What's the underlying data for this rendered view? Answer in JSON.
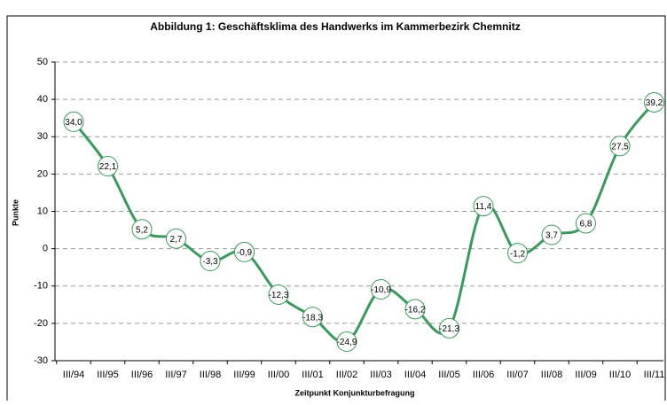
{
  "chart_data": {
    "type": "line",
    "title": "Abbildung 1: Geschäftsklima des Handwerks im Kammerbezirk Chemnitz",
    "y_label": "Punkte",
    "x_label": "Zeitpunkt Konjunkturbefragung",
    "categories": [
      "III/94",
      "III/95",
      "III/96",
      "III/97",
      "III/98",
      "III/99",
      "III/00",
      "III/01",
      "III/02",
      "III/03",
      "III/04",
      "III/05",
      "III/06",
      "III/07",
      "III/08",
      "III/09",
      "III/10",
      "III/11"
    ],
    "series": [
      {
        "name": "Geschäftsklima",
        "color": "#3a9a5c",
        "values": [
          34.0,
          22.1,
          5.2,
          2.7,
          -3.3,
          -0.9,
          -12.3,
          -18.3,
          -24.9,
          -10.9,
          -16.2,
          -21.3,
          11.4,
          -1.2,
          3.7,
          6.8,
          27.5,
          39.2
        ],
        "value_labels": [
          "34,0",
          "22,1",
          "5,2",
          "2,7",
          "-3,3",
          "-0,9",
          "-12,3",
          "-18,3",
          "-24,9",
          "-10,9",
          "-16,2",
          "-21,3",
          "11,4",
          "-1,2",
          "3,7",
          "6,8",
          "27,5",
          "39,2"
        ]
      }
    ],
    "ylim": [
      -30,
      50
    ],
    "yticks": [
      -30,
      -20,
      -10,
      0,
      10,
      20,
      30,
      40,
      50
    ],
    "grid": true
  }
}
